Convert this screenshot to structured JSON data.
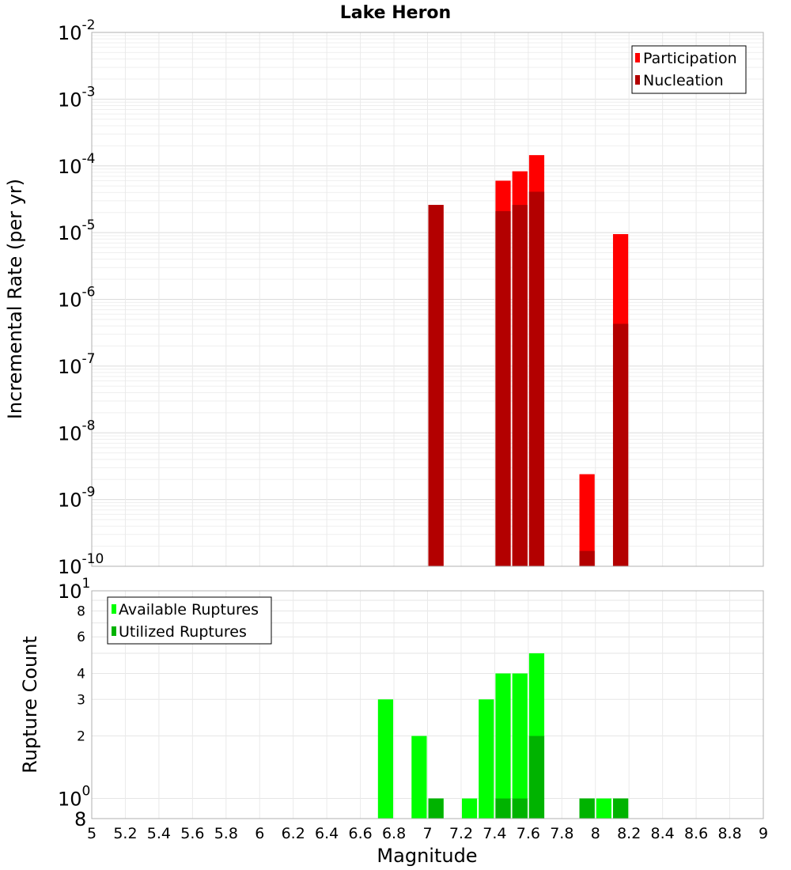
{
  "title": "Lake Heron",
  "chart_data": [
    {
      "type": "bar",
      "title": "Lake Heron",
      "xlabel": "",
      "ylabel": "Incremental Rate (per yr)",
      "yscale": "log",
      "ylim": [
        1e-10,
        0.01
      ],
      "xlim": [
        5,
        9
      ],
      "grid": true,
      "legend_placement": "top-right",
      "y_ticks": [
        {
          "base": "10",
          "exp": "-10"
        },
        {
          "base": "10",
          "exp": "-9"
        },
        {
          "base": "10",
          "exp": "-8"
        },
        {
          "base": "10",
          "exp": "-7"
        },
        {
          "base": "10",
          "exp": "-6"
        },
        {
          "base": "10",
          "exp": "-5"
        },
        {
          "base": "10",
          "exp": "-4"
        },
        {
          "base": "10",
          "exp": "-3"
        },
        {
          "base": "10",
          "exp": "-2"
        }
      ],
      "series": [
        {
          "name": "Participation",
          "color": "#ff0000",
          "x": [
            7.05,
            7.45,
            7.55,
            7.65,
            7.95,
            8.15
          ],
          "values": [
            2.6e-05,
            6e-05,
            8.3e-05,
            0.000145,
            2.4e-09,
            9.5e-06
          ]
        },
        {
          "name": "Nucleation",
          "color": "#b30000",
          "x": [
            7.05,
            7.45,
            7.55,
            7.65,
            7.95,
            8.15
          ],
          "values": [
            2.6e-05,
            2.1e-05,
            2.6e-05,
            4.1e-05,
            1.7e-10,
            4.3e-07
          ]
        }
      ]
    },
    {
      "type": "bar",
      "title": "",
      "xlabel": "Magnitude",
      "ylabel": "Rupture Count",
      "yscale": "log",
      "ylim": [
        0.8,
        10
      ],
      "xlim": [
        5,
        9
      ],
      "grid": true,
      "legend_placement": "top-left",
      "y_ticks": [
        {
          "value": 0.8,
          "label": "8",
          "exp": "",
          "major": true
        },
        {
          "value": 1,
          "label": "10",
          "exp": "0",
          "major": true
        },
        {
          "value": 2,
          "label": "2",
          "exp": "",
          "major": false
        },
        {
          "value": 3,
          "label": "3",
          "exp": "",
          "major": false
        },
        {
          "value": 4,
          "label": "4",
          "exp": "",
          "major": false
        },
        {
          "value": 6,
          "label": "6",
          "exp": "",
          "major": false
        },
        {
          "value": 8,
          "label": "8",
          "exp": "",
          "major": false
        },
        {
          "value": 10,
          "label": "10",
          "exp": "1",
          "major": true
        }
      ],
      "x_ticks": [
        "5",
        "5.2",
        "5.4",
        "5.6",
        "5.8",
        "6",
        "6.2",
        "6.4",
        "6.6",
        "6.8",
        "7",
        "7.2",
        "7.4",
        "7.6",
        "7.8",
        "8",
        "8.2",
        "8.4",
        "8.6",
        "8.8",
        "9"
      ],
      "series": [
        {
          "name": "Available Ruptures",
          "color": "#00ff00",
          "x": [
            6.75,
            6.95,
            7.05,
            7.25,
            7.35,
            7.45,
            7.55,
            7.65,
            7.95,
            8.05,
            8.15
          ],
          "values": [
            3,
            2,
            1,
            1,
            3,
            4,
            4,
            5,
            1,
            1,
            1
          ]
        },
        {
          "name": "Utilized Ruptures",
          "color": "#00b300",
          "x": [
            7.05,
            7.45,
            7.55,
            7.65,
            7.95,
            8.15
          ],
          "values": [
            1,
            1,
            1,
            2,
            1,
            1
          ]
        }
      ]
    }
  ]
}
